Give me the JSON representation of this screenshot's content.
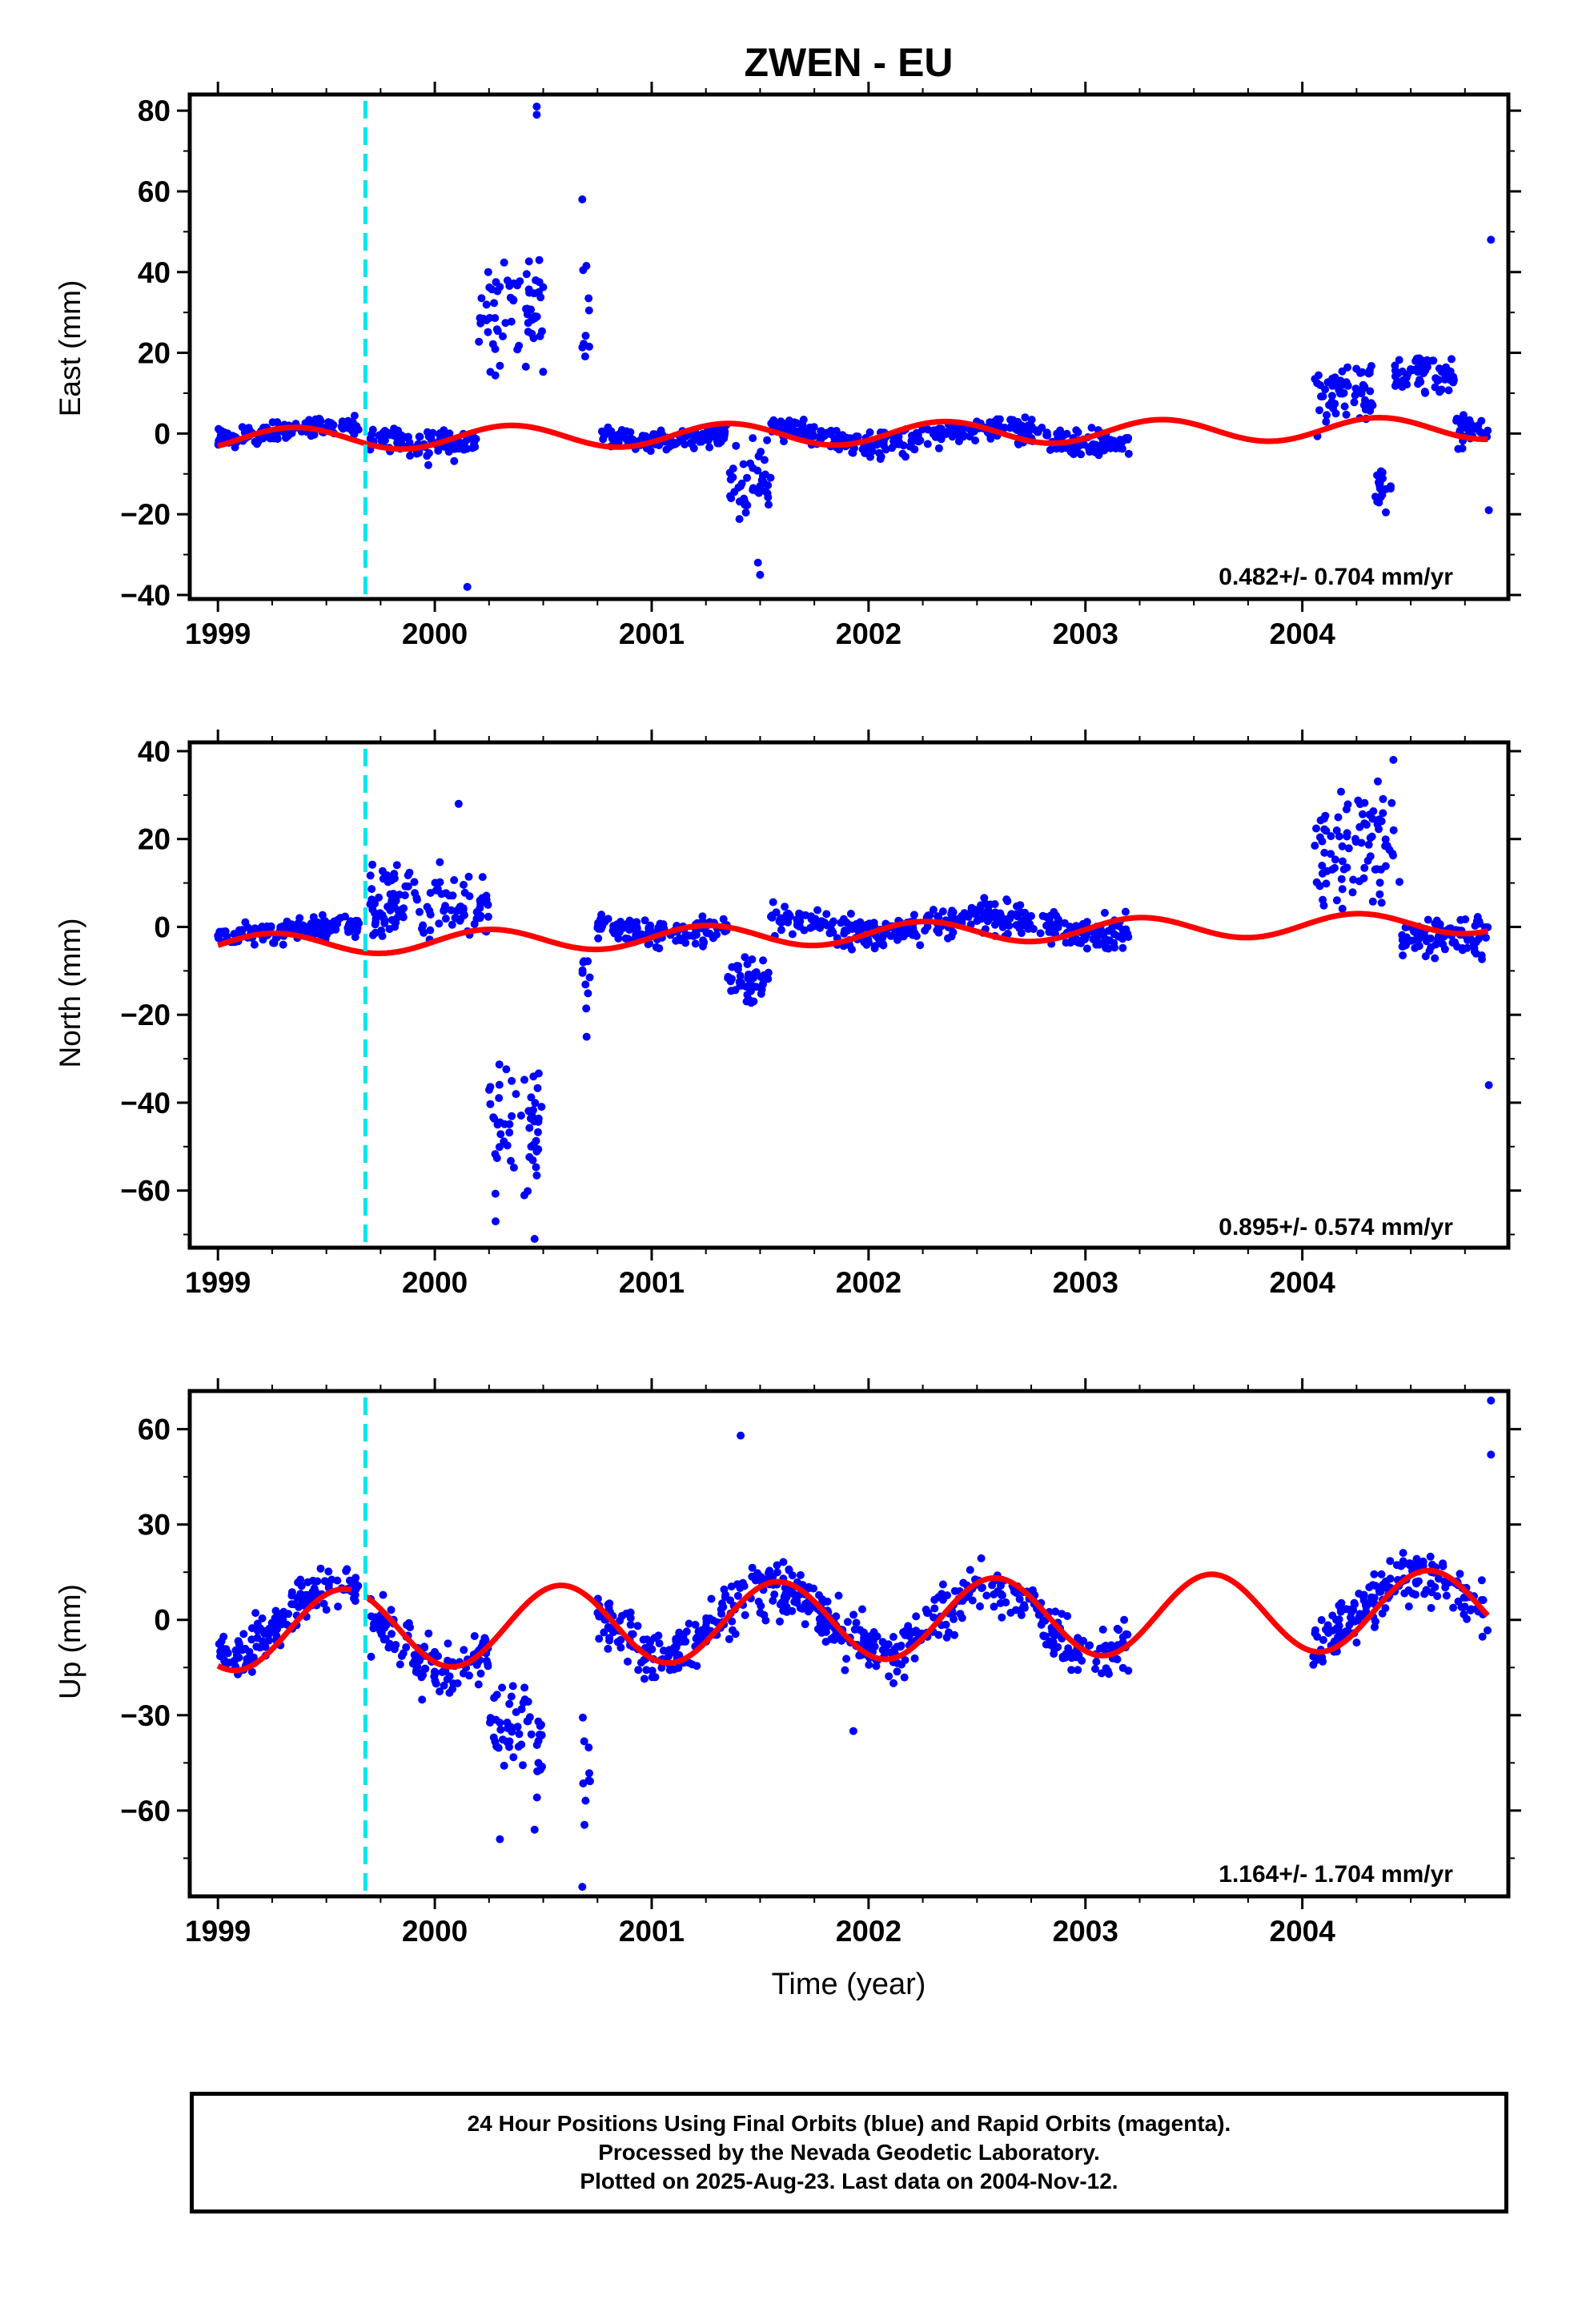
{
  "chart_data": {
    "title": "ZWEN - EU",
    "type": "scatter",
    "xlabel": "Time (year)",
    "xlim": [
      1998.87,
      2004.95
    ],
    "x_ticks": [
      1999,
      2000,
      2001,
      2002,
      2003,
      2004
    ],
    "x_tick_labels": [
      "1999",
      "2000",
      "2001",
      "2002",
      "2003",
      "2004"
    ],
    "equipment_change_epoch": 1999.68,
    "colors": {
      "points": "#0000ff",
      "model": "#ff0000",
      "event_line": "#00e5ee"
    },
    "panels": [
      {
        "name": "east",
        "ylabel": "East (mm)",
        "ylim": [
          -41,
          84
        ],
        "y_ticks": [
          -40,
          -20,
          0,
          20,
          40,
          60,
          80
        ],
        "y_tick_labels": [
          "−40",
          "−20",
          "0",
          "20",
          "40",
          "60",
          "80"
        ],
        "rate_label": "0.482+/- 0.704 mm/yr",
        "segments": [
          {
            "x0": 1999.0,
            "x1": 1999.65,
            "base": 0.5,
            "noise": 2.0,
            "seasonal": 1.5
          },
          {
            "x0": 1999.7,
            "x1": 2000.2,
            "base": -1.5,
            "noise": 3.0,
            "seasonal": 1.0
          },
          {
            "x0": 2000.2,
            "x1": 2000.5,
            "base": 30.0,
            "noise": 14.0,
            "seasonal": 0.0
          },
          {
            "x0": 2000.68,
            "x1": 2000.72,
            "base": 30.0,
            "noise": 12.0,
            "seasonal": 0.0
          },
          {
            "x0": 2000.75,
            "x1": 2001.35,
            "base": -0.5,
            "noise": 2.0,
            "seasonal": 1.5
          },
          {
            "x0": 2001.35,
            "x1": 2001.55,
            "base": -12.0,
            "noise": 8.0,
            "seasonal": 0.0
          },
          {
            "x0": 2001.55,
            "x1": 2003.2,
            "base": -0.5,
            "noise": 2.5,
            "seasonal": 2.0
          },
          {
            "x0": 2004.05,
            "x1": 2004.33,
            "base": 10.0,
            "noise": 7.0,
            "seasonal": 0.0
          },
          {
            "x0": 2004.33,
            "x1": 2004.42,
            "base": -12.0,
            "noise": 4.0,
            "seasonal": 0.0
          },
          {
            "x0": 2004.42,
            "x1": 2004.7,
            "base": 15.0,
            "noise": 4.0,
            "seasonal": 0.0
          },
          {
            "x0": 2004.7,
            "x1": 2004.86,
            "base": 1.0,
            "noise": 3.0,
            "seasonal": 0.0
          }
        ],
        "outliers": [
          [
            2000.15,
            -38
          ],
          [
            2000.47,
            81
          ],
          [
            2000.47,
            79
          ],
          [
            2001.5,
            -35
          ],
          [
            2001.49,
            -32
          ],
          [
            2000.68,
            58
          ],
          [
            2004.87,
            48
          ],
          [
            2004.86,
            -19
          ]
        ],
        "model": {
          "trend": 0.482,
          "offset": 0,
          "amplitude": 2.8,
          "phase": 0.1,
          "gaps": []
        }
      },
      {
        "name": "north",
        "ylabel": "North (mm)",
        "ylim": [
          -73,
          42
        ],
        "y_ticks": [
          -60,
          -40,
          -20,
          0,
          20,
          40
        ],
        "y_tick_labels": [
          "−60",
          "−40",
          "−20",
          "0",
          "20",
          "40"
        ],
        "rate_label": "0.895+/- 0.574 mm/yr",
        "segments": [
          {
            "x0": 1999.0,
            "x1": 1999.65,
            "base": -1.0,
            "noise": 2.0,
            "seasonal": 1.0
          },
          {
            "x0": 1999.7,
            "x1": 2000.25,
            "base": 5.0,
            "noise": 7.0,
            "seasonal": 0.0
          },
          {
            "x0": 2000.25,
            "x1": 2000.5,
            "base": -45.0,
            "noise": 12.0,
            "seasonal": 0.0
          },
          {
            "x0": 2000.68,
            "x1": 2000.72,
            "base": -10.0,
            "noise": 8.0,
            "seasonal": 0.0
          },
          {
            "x0": 2000.75,
            "x1": 2001.35,
            "base": 0.0,
            "noise": 2.5,
            "seasonal": 1.5
          },
          {
            "x0": 2001.35,
            "x1": 2001.55,
            "base": -12.0,
            "noise": 4.0,
            "seasonal": 0.0
          },
          {
            "x0": 2001.55,
            "x1": 2003.2,
            "base": 0.5,
            "noise": 3.0,
            "seasonal": 2.0
          },
          {
            "x0": 2004.05,
            "x1": 2004.45,
            "base": 18.0,
            "noise": 10.0,
            "seasonal": 0.0
          },
          {
            "x0": 2004.45,
            "x1": 2004.86,
            "base": -2.0,
            "noise": 4.0,
            "seasonal": 0.0
          }
        ],
        "outliers": [
          [
            2000.46,
            -71
          ],
          [
            2000.28,
            -67
          ],
          [
            2000.11,
            28
          ],
          [
            2004.42,
            38
          ],
          [
            2004.86,
            -36
          ],
          [
            2000.7,
            -25
          ]
        ],
        "model": {
          "trend": 0.895,
          "offset": -1.5,
          "amplitude": 2.5,
          "phase": 0.0,
          "gaps": []
        }
      },
      {
        "name": "up",
        "ylabel": "Up (mm)",
        "ylim": [
          -87,
          72
        ],
        "y_ticks": [
          -60,
          -30,
          0,
          30,
          60
        ],
        "y_tick_labels": [
          "−60",
          "−30",
          "0",
          "30",
          "60"
        ],
        "rate_label": "1.164+/- 1.704 mm/yr",
        "segments": [
          {
            "x0": 1999.0,
            "x1": 1999.65,
            "base": 0.0,
            "noise": 6.0,
            "seasonal": 11.0
          },
          {
            "x0": 1999.7,
            "x1": 2000.25,
            "base": -4.0,
            "noise": 8.0,
            "seasonal": 11.0
          },
          {
            "x0": 2000.25,
            "x1": 2000.5,
            "base": -35.0,
            "noise": 12.0,
            "seasonal": 0.0
          },
          {
            "x0": 2000.68,
            "x1": 2000.72,
            "base": -50.0,
            "noise": 18.0,
            "seasonal": 0.0
          },
          {
            "x0": 2000.75,
            "x1": 2003.2,
            "base": 0.0,
            "noise": 7.0,
            "seasonal": 11.0
          },
          {
            "x0": 2004.05,
            "x1": 2004.86,
            "base": 4.0,
            "noise": 7.0,
            "seasonal": 11.0
          }
        ],
        "outliers": [
          [
            2001.41,
            58
          ],
          [
            2004.87,
            69
          ],
          [
            2004.87,
            52
          ],
          [
            2000.68,
            -84
          ],
          [
            2001.93,
            -35
          ],
          [
            2000.3,
            -69
          ],
          [
            2000.46,
            -66
          ]
        ],
        "model": {
          "trend": 1.164,
          "offset": 0,
          "amplitude": 12.5,
          "phase": 0.33,
          "gaps": [
            [
              1999.62,
              1999.68
            ]
          ]
        }
      }
    ]
  },
  "caption": {
    "line1": "24 Hour Positions Using Final Orbits (blue) and Rapid Orbits (magenta).",
    "line2": "Processed by the Nevada Geodetic Laboratory.",
    "line3": "Plotted on 2025-Aug-23. Last data on 2004-Nov-12."
  }
}
